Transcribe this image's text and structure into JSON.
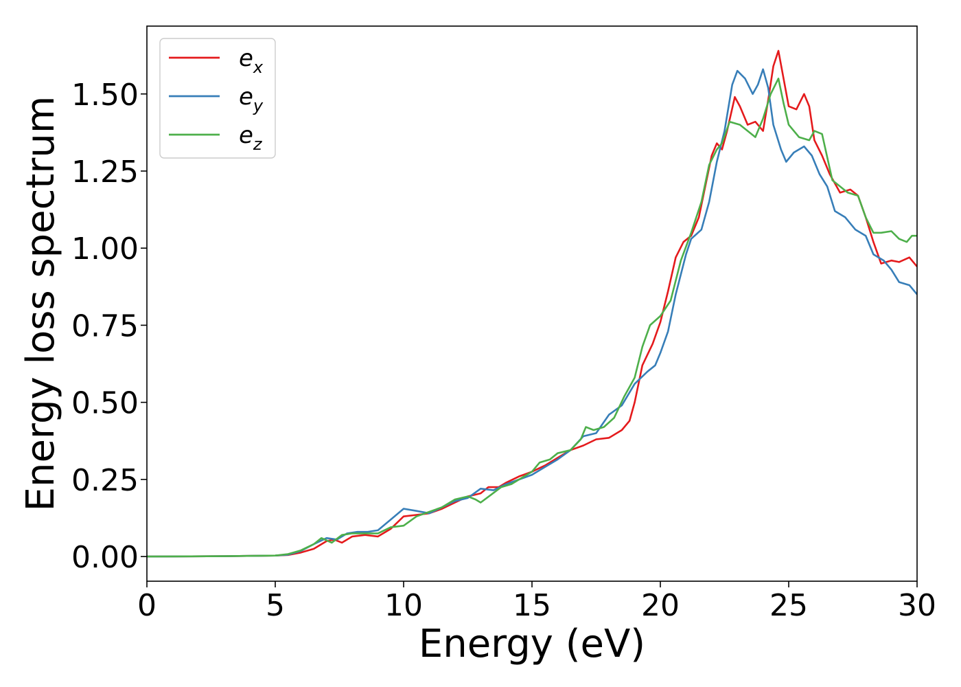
{
  "chart_data": {
    "type": "line",
    "xlabel": "Energy (eV)",
    "ylabel": "Energy loss spectrum",
    "xlim": [
      0,
      30
    ],
    "ylim": [
      -0.08,
      1.72
    ],
    "xticks": [
      0,
      5,
      10,
      15,
      20,
      25,
      30
    ],
    "yticks": [
      0.0,
      0.25,
      0.5,
      0.75,
      1.0,
      1.25,
      1.5
    ],
    "xtick_labels": [
      "0",
      "5",
      "10",
      "15",
      "20",
      "25",
      "30"
    ],
    "ytick_labels": [
      "0.00",
      "0.25",
      "0.50",
      "0.75",
      "1.00",
      "1.25",
      "1.50"
    ],
    "grid": false,
    "legend_position": "top-left",
    "series": [
      {
        "name": "e",
        "subscript": "x",
        "color": "#e41a1c",
        "points": [
          [
            0,
            0
          ],
          [
            3,
            0.001
          ],
          [
            5,
            0.003
          ],
          [
            5.5,
            0.005
          ],
          [
            6,
            0.013
          ],
          [
            6.5,
            0.025
          ],
          [
            7,
            0.05
          ],
          [
            7.3,
            0.055
          ],
          [
            7.6,
            0.045
          ],
          [
            8,
            0.065
          ],
          [
            8.5,
            0.07
          ],
          [
            9,
            0.065
          ],
          [
            9.5,
            0.09
          ],
          [
            10,
            0.13
          ],
          [
            10.5,
            0.135
          ],
          [
            11,
            0.14
          ],
          [
            11.5,
            0.155
          ],
          [
            12,
            0.175
          ],
          [
            12.5,
            0.195
          ],
          [
            13,
            0.205
          ],
          [
            13.3,
            0.225
          ],
          [
            13.7,
            0.225
          ],
          [
            14,
            0.24
          ],
          [
            14.5,
            0.26
          ],
          [
            15,
            0.275
          ],
          [
            15.5,
            0.295
          ],
          [
            16,
            0.32
          ],
          [
            16.5,
            0.345
          ],
          [
            17,
            0.36
          ],
          [
            17.5,
            0.38
          ],
          [
            18,
            0.385
          ],
          [
            18.5,
            0.41
          ],
          [
            18.8,
            0.44
          ],
          [
            19,
            0.5
          ],
          [
            19.3,
            0.62
          ],
          [
            19.7,
            0.69
          ],
          [
            20,
            0.76
          ],
          [
            20.3,
            0.86
          ],
          [
            20.6,
            0.97
          ],
          [
            20.9,
            1.02
          ],
          [
            21.2,
            1.04
          ],
          [
            21.5,
            1.1
          ],
          [
            21.8,
            1.22
          ],
          [
            22,
            1.3
          ],
          [
            22.2,
            1.34
          ],
          [
            22.4,
            1.32
          ],
          [
            22.6,
            1.38
          ],
          [
            22.9,
            1.49
          ],
          [
            23.1,
            1.46
          ],
          [
            23.4,
            1.4
          ],
          [
            23.7,
            1.41
          ],
          [
            24,
            1.38
          ],
          [
            24.2,
            1.48
          ],
          [
            24.4,
            1.59
          ],
          [
            24.6,
            1.64
          ],
          [
            24.8,
            1.55
          ],
          [
            25,
            1.46
          ],
          [
            25.3,
            1.45
          ],
          [
            25.6,
            1.5
          ],
          [
            25.8,
            1.46
          ],
          [
            26,
            1.35
          ],
          [
            26.3,
            1.3
          ],
          [
            26.6,
            1.24
          ],
          [
            27,
            1.18
          ],
          [
            27.4,
            1.19
          ],
          [
            27.7,
            1.17
          ],
          [
            28,
            1.1
          ],
          [
            28.3,
            1.02
          ],
          [
            28.6,
            0.95
          ],
          [
            29,
            0.96
          ],
          [
            29.3,
            0.955
          ],
          [
            29.7,
            0.97
          ],
          [
            30,
            0.94
          ]
        ]
      },
      {
        "name": "e",
        "subscript": "y",
        "color": "#377eb8",
        "points": [
          [
            0,
            0
          ],
          [
            3,
            0.001
          ],
          [
            5,
            0.003
          ],
          [
            5.5,
            0.006
          ],
          [
            6,
            0.018
          ],
          [
            6.5,
            0.04
          ],
          [
            7,
            0.06
          ],
          [
            7.4,
            0.055
          ],
          [
            7.8,
            0.075
          ],
          [
            8.2,
            0.08
          ],
          [
            8.6,
            0.08
          ],
          [
            9,
            0.085
          ],
          [
            9.5,
            0.12
          ],
          [
            10,
            0.155
          ],
          [
            10.5,
            0.148
          ],
          [
            11,
            0.14
          ],
          [
            11.5,
            0.16
          ],
          [
            12,
            0.18
          ],
          [
            12.5,
            0.19
          ],
          [
            13,
            0.22
          ],
          [
            13.5,
            0.215
          ],
          [
            14,
            0.235
          ],
          [
            14.5,
            0.25
          ],
          [
            15,
            0.265
          ],
          [
            15.5,
            0.29
          ],
          [
            16,
            0.315
          ],
          [
            16.5,
            0.345
          ],
          [
            17,
            0.39
          ],
          [
            17.5,
            0.4
          ],
          [
            18,
            0.46
          ],
          [
            18.5,
            0.49
          ],
          [
            19,
            0.56
          ],
          [
            19.5,
            0.6
          ],
          [
            19.8,
            0.62
          ],
          [
            20,
            0.66
          ],
          [
            20.3,
            0.73
          ],
          [
            20.6,
            0.85
          ],
          [
            21,
            0.98
          ],
          [
            21.2,
            1.03
          ],
          [
            21.6,
            1.06
          ],
          [
            21.9,
            1.15
          ],
          [
            22.2,
            1.28
          ],
          [
            22.5,
            1.38
          ],
          [
            22.8,
            1.53
          ],
          [
            23,
            1.575
          ],
          [
            23.3,
            1.55
          ],
          [
            23.6,
            1.5
          ],
          [
            23.8,
            1.53
          ],
          [
            24,
            1.58
          ],
          [
            24.2,
            1.52
          ],
          [
            24.4,
            1.4
          ],
          [
            24.7,
            1.32
          ],
          [
            24.9,
            1.28
          ],
          [
            25.2,
            1.31
          ],
          [
            25.6,
            1.33
          ],
          [
            25.9,
            1.3
          ],
          [
            26.2,
            1.24
          ],
          [
            26.5,
            1.2
          ],
          [
            26.8,
            1.12
          ],
          [
            27.2,
            1.1
          ],
          [
            27.6,
            1.06
          ],
          [
            28,
            1.04
          ],
          [
            28.3,
            0.98
          ],
          [
            28.7,
            0.96
          ],
          [
            29,
            0.93
          ],
          [
            29.3,
            0.89
          ],
          [
            29.7,
            0.88
          ],
          [
            30,
            0.85
          ]
        ]
      },
      {
        "name": "e",
        "subscript": "z",
        "color": "#4daf4a",
        "points": [
          [
            0,
            0
          ],
          [
            3,
            0.001
          ],
          [
            5,
            0.003
          ],
          [
            5.5,
            0.008
          ],
          [
            6,
            0.02
          ],
          [
            6.5,
            0.04
          ],
          [
            6.8,
            0.06
          ],
          [
            7.2,
            0.045
          ],
          [
            7.6,
            0.07
          ],
          [
            8,
            0.075
          ],
          [
            8.5,
            0.075
          ],
          [
            9,
            0.075
          ],
          [
            9.5,
            0.095
          ],
          [
            10,
            0.1
          ],
          [
            10.5,
            0.13
          ],
          [
            11,
            0.145
          ],
          [
            11.5,
            0.16
          ],
          [
            12,
            0.185
          ],
          [
            12.5,
            0.195
          ],
          [
            12.8,
            0.185
          ],
          [
            13,
            0.175
          ],
          [
            13.4,
            0.2
          ],
          [
            13.8,
            0.225
          ],
          [
            14.2,
            0.235
          ],
          [
            14.6,
            0.255
          ],
          [
            15,
            0.275
          ],
          [
            15.3,
            0.305
          ],
          [
            15.7,
            0.315
          ],
          [
            16,
            0.335
          ],
          [
            16.5,
            0.345
          ],
          [
            16.9,
            0.38
          ],
          [
            17.1,
            0.42
          ],
          [
            17.4,
            0.41
          ],
          [
            17.8,
            0.42
          ],
          [
            18.2,
            0.45
          ],
          [
            18.6,
            0.52
          ],
          [
            19,
            0.58
          ],
          [
            19.3,
            0.68
          ],
          [
            19.6,
            0.75
          ],
          [
            20,
            0.78
          ],
          [
            20.4,
            0.83
          ],
          [
            20.8,
            0.96
          ],
          [
            21.2,
            1.05
          ],
          [
            21.6,
            1.15
          ],
          [
            21.9,
            1.27
          ],
          [
            22.2,
            1.32
          ],
          [
            22.4,
            1.34
          ],
          [
            22.7,
            1.41
          ],
          [
            23.1,
            1.4
          ],
          [
            23.4,
            1.38
          ],
          [
            23.7,
            1.36
          ],
          [
            24,
            1.42
          ],
          [
            24.3,
            1.5
          ],
          [
            24.6,
            1.55
          ],
          [
            24.8,
            1.47
          ],
          [
            25,
            1.4
          ],
          [
            25.4,
            1.36
          ],
          [
            25.8,
            1.35
          ],
          [
            26,
            1.38
          ],
          [
            26.3,
            1.37
          ],
          [
            26.7,
            1.22
          ],
          [
            27,
            1.2
          ],
          [
            27.3,
            1.18
          ],
          [
            27.7,
            1.17
          ],
          [
            28,
            1.1
          ],
          [
            28.3,
            1.05
          ],
          [
            28.6,
            1.05
          ],
          [
            29,
            1.055
          ],
          [
            29.3,
            1.03
          ],
          [
            29.6,
            1.02
          ],
          [
            29.8,
            1.04
          ],
          [
            30,
            1.04
          ]
        ]
      }
    ]
  }
}
